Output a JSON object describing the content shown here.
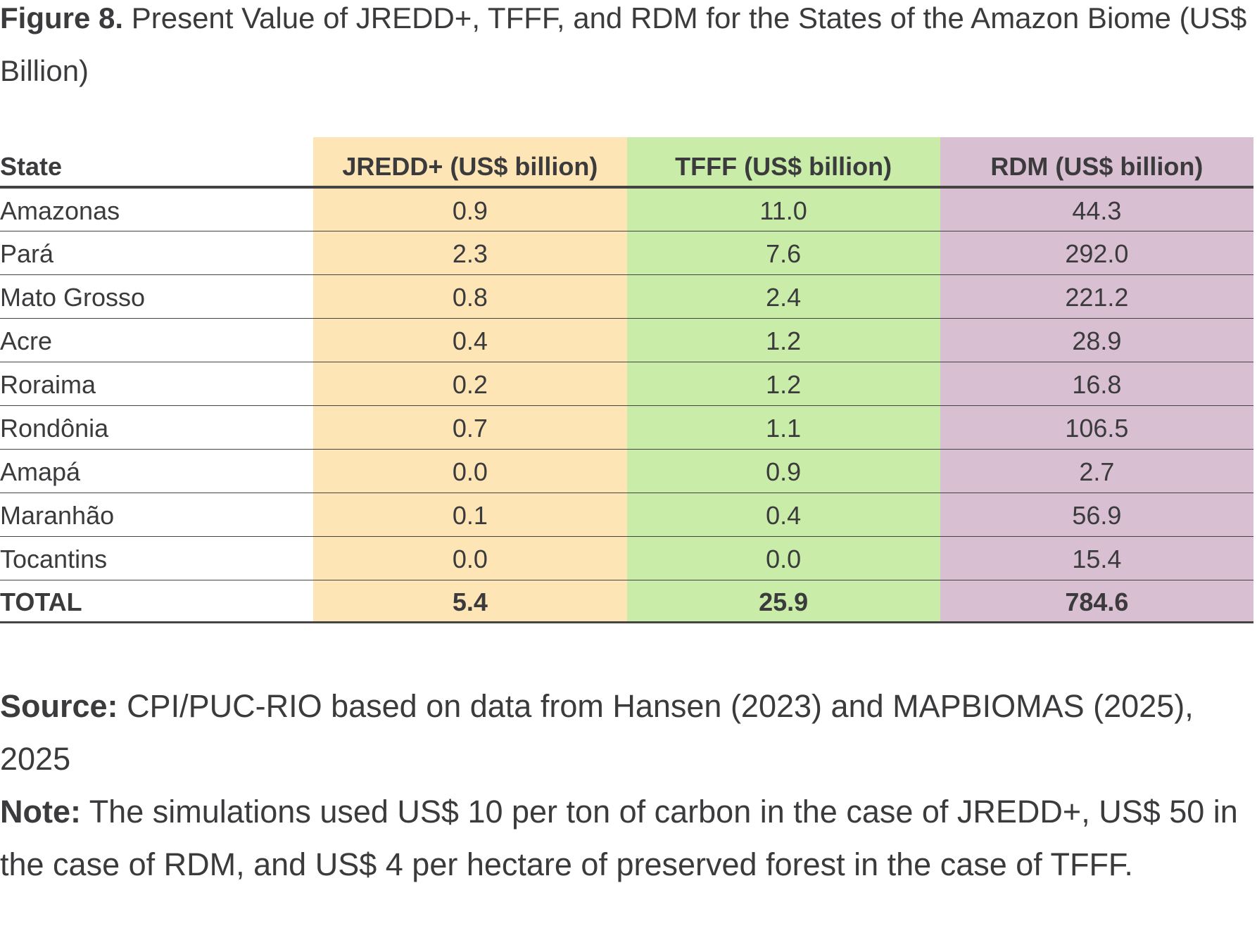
{
  "title": {
    "label": "Figure 8.",
    "text": "Present Value of JREDD+, TFFF, and RDM for the States of the Amazon Biome (US$ Billion)"
  },
  "colors": {
    "jredd": "#fde5b5",
    "tfff": "#c9eda9",
    "rdm": "#d9bfd2"
  },
  "table": {
    "headers": [
      "State",
      "JREDD+ (US$ billion)",
      "TFFF (US$ billion)",
      "RDM (US$ billion)"
    ],
    "rows": [
      [
        "Amazonas",
        "0.9",
        "11.0",
        "44.3"
      ],
      [
        "Pará",
        "2.3",
        "7.6",
        "292.0"
      ],
      [
        "Mato Grosso",
        "0.8",
        "2.4",
        "221.2"
      ],
      [
        "Acre",
        "0.4",
        "1.2",
        "28.9"
      ],
      [
        "Roraima",
        "0.2",
        "1.2",
        "16.8"
      ],
      [
        "Rondônia",
        "0.7",
        "1.1",
        "106.5"
      ],
      [
        "Amapá",
        "0.0",
        "0.9",
        "2.7"
      ],
      [
        "Maranhão",
        "0.1",
        "0.4",
        "56.9"
      ],
      [
        "Tocantins",
        "0.0",
        "0.0",
        "15.4"
      ]
    ],
    "total": [
      "TOTAL",
      "5.4",
      "25.9",
      "784.6"
    ]
  },
  "source": {
    "label": "Source:",
    "text": "CPI/PUC-RIO based on data from Hansen (2023) and MAPBIOMAS (2025), 2025"
  },
  "note": {
    "label": "Note:",
    "text": "The simulations used US$ 10 per ton of carbon in the case of JREDD+, US$ 50 in the case of RDM, and US$ 4 per hectare of preserved forest in the case of TFFF."
  }
}
